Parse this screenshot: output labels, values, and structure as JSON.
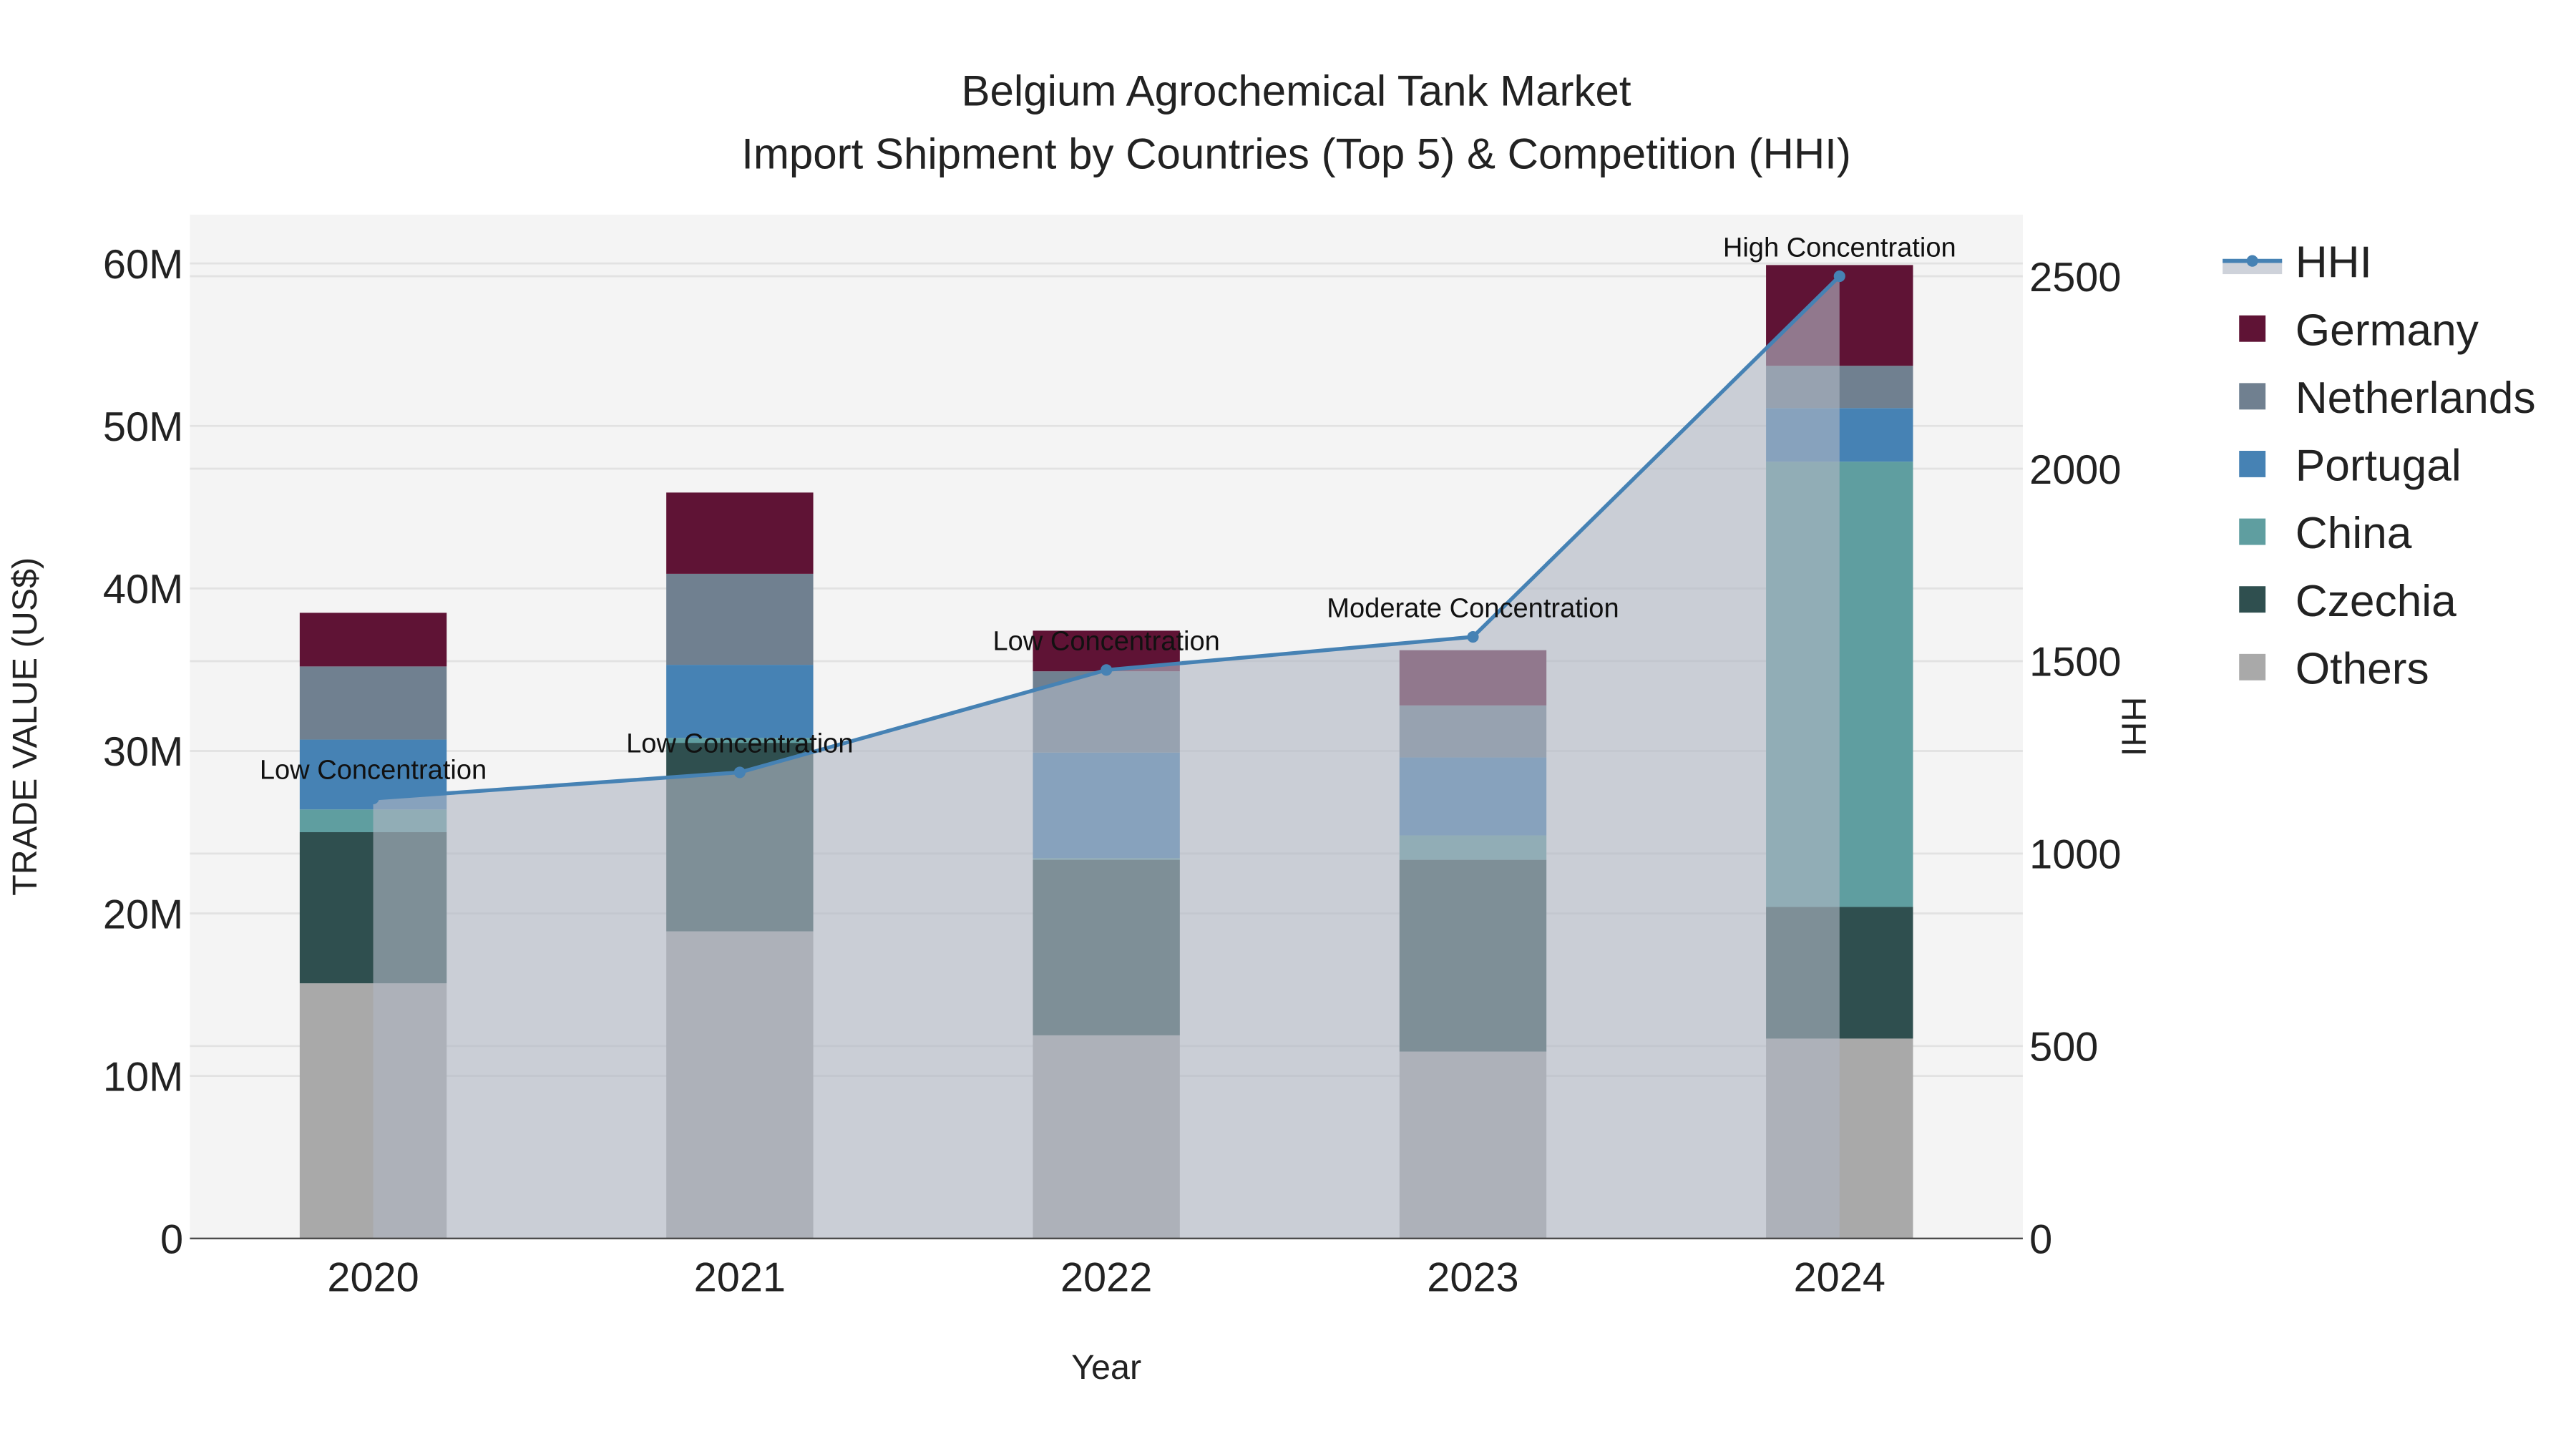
{
  "chart_data": {
    "type": "bar",
    "title": "Belgium Agrochemical Tank Market",
    "subtitle": "Import Shipment by Countries (Top 5) & Competition (HHI)",
    "xlabel": "Year",
    "ylabel": "TRADE VALUE (US$)",
    "y2label": "HHI",
    "categories": [
      "2020",
      "2021",
      "2022",
      "2023",
      "2024"
    ],
    "ylim": [
      0,
      63000000
    ],
    "y2lim": [
      0,
      2660
    ],
    "yticks": [
      0,
      10000000,
      20000000,
      30000000,
      40000000,
      50000000,
      60000000
    ],
    "ytick_labels": [
      "0",
      "10M",
      "20M",
      "30M",
      "40M",
      "50M",
      "60M"
    ],
    "y2ticks": [
      0,
      500,
      1000,
      1500,
      2000,
      2500
    ],
    "y2tick_labels": [
      "0",
      "500",
      "1000",
      "1500",
      "2000",
      "2500"
    ],
    "grid": true,
    "legend_position": "right",
    "series": [
      {
        "name": "Others",
        "color": "#A9A9A9",
        "values": [
          15700000,
          18900000,
          12500000,
          11500000,
          12300000
        ]
      },
      {
        "name": "Czechia",
        "color": "#2F4F4F",
        "values": [
          9300000,
          11600000,
          10800000,
          11800000,
          8100000
        ]
      },
      {
        "name": "China",
        "color": "#5F9EA0",
        "values": [
          1400000,
          300000,
          100000,
          1500000,
          27400000
        ]
      },
      {
        "name": "Portugal",
        "color": "#4682B4",
        "values": [
          4300000,
          4500000,
          6500000,
          4800000,
          3300000
        ]
      },
      {
        "name": "Netherlands",
        "color": "#708090",
        "values": [
          4500000,
          5600000,
          5000000,
          3200000,
          2600000
        ]
      },
      {
        "name": "Germany",
        "color": "#5F1335",
        "values": [
          3300000,
          5000000,
          2500000,
          3400000,
          6200000
        ]
      }
    ],
    "line": {
      "name": "HHI",
      "color": "#4682B4",
      "values": [
        1143,
        1211,
        1477,
        1563,
        2500
      ],
      "annotations": [
        "Low Concentration",
        "Low Concentration",
        "Low Concentration",
        "Moderate Concentration",
        "High Concentration"
      ]
    },
    "legend_order": [
      "HHI",
      "Germany",
      "Netherlands",
      "Portugal",
      "China",
      "Czechia",
      "Others"
    ]
  }
}
